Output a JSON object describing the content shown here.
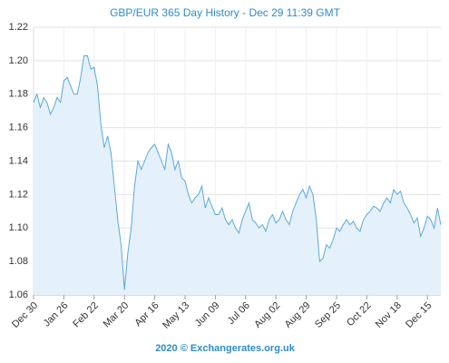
{
  "chart_data": {
    "type": "area-line",
    "title": "GBP/EUR 365 Day History - Dec 29 11:39 GMT",
    "footer": "2020 © Exchangerates.org.uk",
    "categories": [
      "Dec 30",
      null,
      null,
      null,
      null,
      null,
      null,
      null,
      null,
      "Jan 26",
      null,
      null,
      null,
      null,
      null,
      null,
      null,
      null,
      "Feb 22",
      null,
      null,
      null,
      null,
      null,
      null,
      null,
      null,
      "Mar 20",
      null,
      null,
      null,
      null,
      null,
      null,
      null,
      null,
      "Apr 16",
      null,
      null,
      null,
      null,
      null,
      null,
      null,
      null,
      "May 13",
      null,
      null,
      null,
      null,
      null,
      null,
      null,
      null,
      "Jun 09",
      null,
      null,
      null,
      null,
      null,
      null,
      null,
      null,
      "Jul 06",
      null,
      null,
      null,
      null,
      null,
      null,
      null,
      null,
      "Aug 02",
      null,
      null,
      null,
      null,
      null,
      null,
      null,
      null,
      "Aug 29",
      null,
      null,
      null,
      null,
      null,
      null,
      null,
      null,
      "Sep 25",
      null,
      null,
      null,
      null,
      null,
      null,
      null,
      null,
      "Oct 22",
      null,
      null,
      null,
      null,
      null,
      null,
      null,
      null,
      "Nov 18",
      null,
      null,
      null,
      null,
      null,
      null,
      null,
      null,
      "Dec 15",
      null,
      null,
      null,
      null
    ],
    "values": [
      1.175,
      1.18,
      1.172,
      1.178,
      1.175,
      1.168,
      1.172,
      1.178,
      1.175,
      1.188,
      1.19,
      1.185,
      1.18,
      1.18,
      1.19,
      1.203,
      1.203,
      1.195,
      1.196,
      1.185,
      1.162,
      1.148,
      1.155,
      1.145,
      1.125,
      1.105,
      1.09,
      1.063,
      1.085,
      1.1,
      1.125,
      1.14,
      1.135,
      1.14,
      1.145,
      1.148,
      1.15,
      1.145,
      1.14,
      1.135,
      1.15,
      1.145,
      1.135,
      1.14,
      1.13,
      1.128,
      1.12,
      1.115,
      1.118,
      1.12,
      1.125,
      1.112,
      1.118,
      1.113,
      1.108,
      1.108,
      1.112,
      1.105,
      1.102,
      1.105,
      1.1,
      1.097,
      1.105,
      1.11,
      1.115,
      1.105,
      1.103,
      1.1,
      1.102,
      1.098,
      1.105,
      1.108,
      1.103,
      1.105,
      1.11,
      1.105,
      1.102,
      1.11,
      1.115,
      1.12,
      1.123,
      1.118,
      1.125,
      1.12,
      1.105,
      1.08,
      1.082,
      1.09,
      1.088,
      1.093,
      1.1,
      1.098,
      1.102,
      1.105,
      1.102,
      1.104,
      1.1,
      1.098,
      1.105,
      1.108,
      1.11,
      1.113,
      1.112,
      1.11,
      1.115,
      1.118,
      1.115,
      1.123,
      1.12,
      1.122,
      1.115,
      1.112,
      1.108,
      1.103,
      1.106,
      1.095,
      1.1,
      1.107,
      1.105,
      1.1,
      1.112,
      1.102
    ],
    "color": "#5aa9db",
    "fill": "#e5f1fa",
    "ylim": [
      1.06,
      1.22
    ],
    "yticks": [
      1.06,
      1.08,
      {
        "value": 1.1,
        "label": "1.10"
      },
      1.12,
      1.14,
      1.16,
      1.18,
      {
        "value": 1.2,
        "label": "1.20"
      },
      1.22
    ],
    "grid": true
  }
}
